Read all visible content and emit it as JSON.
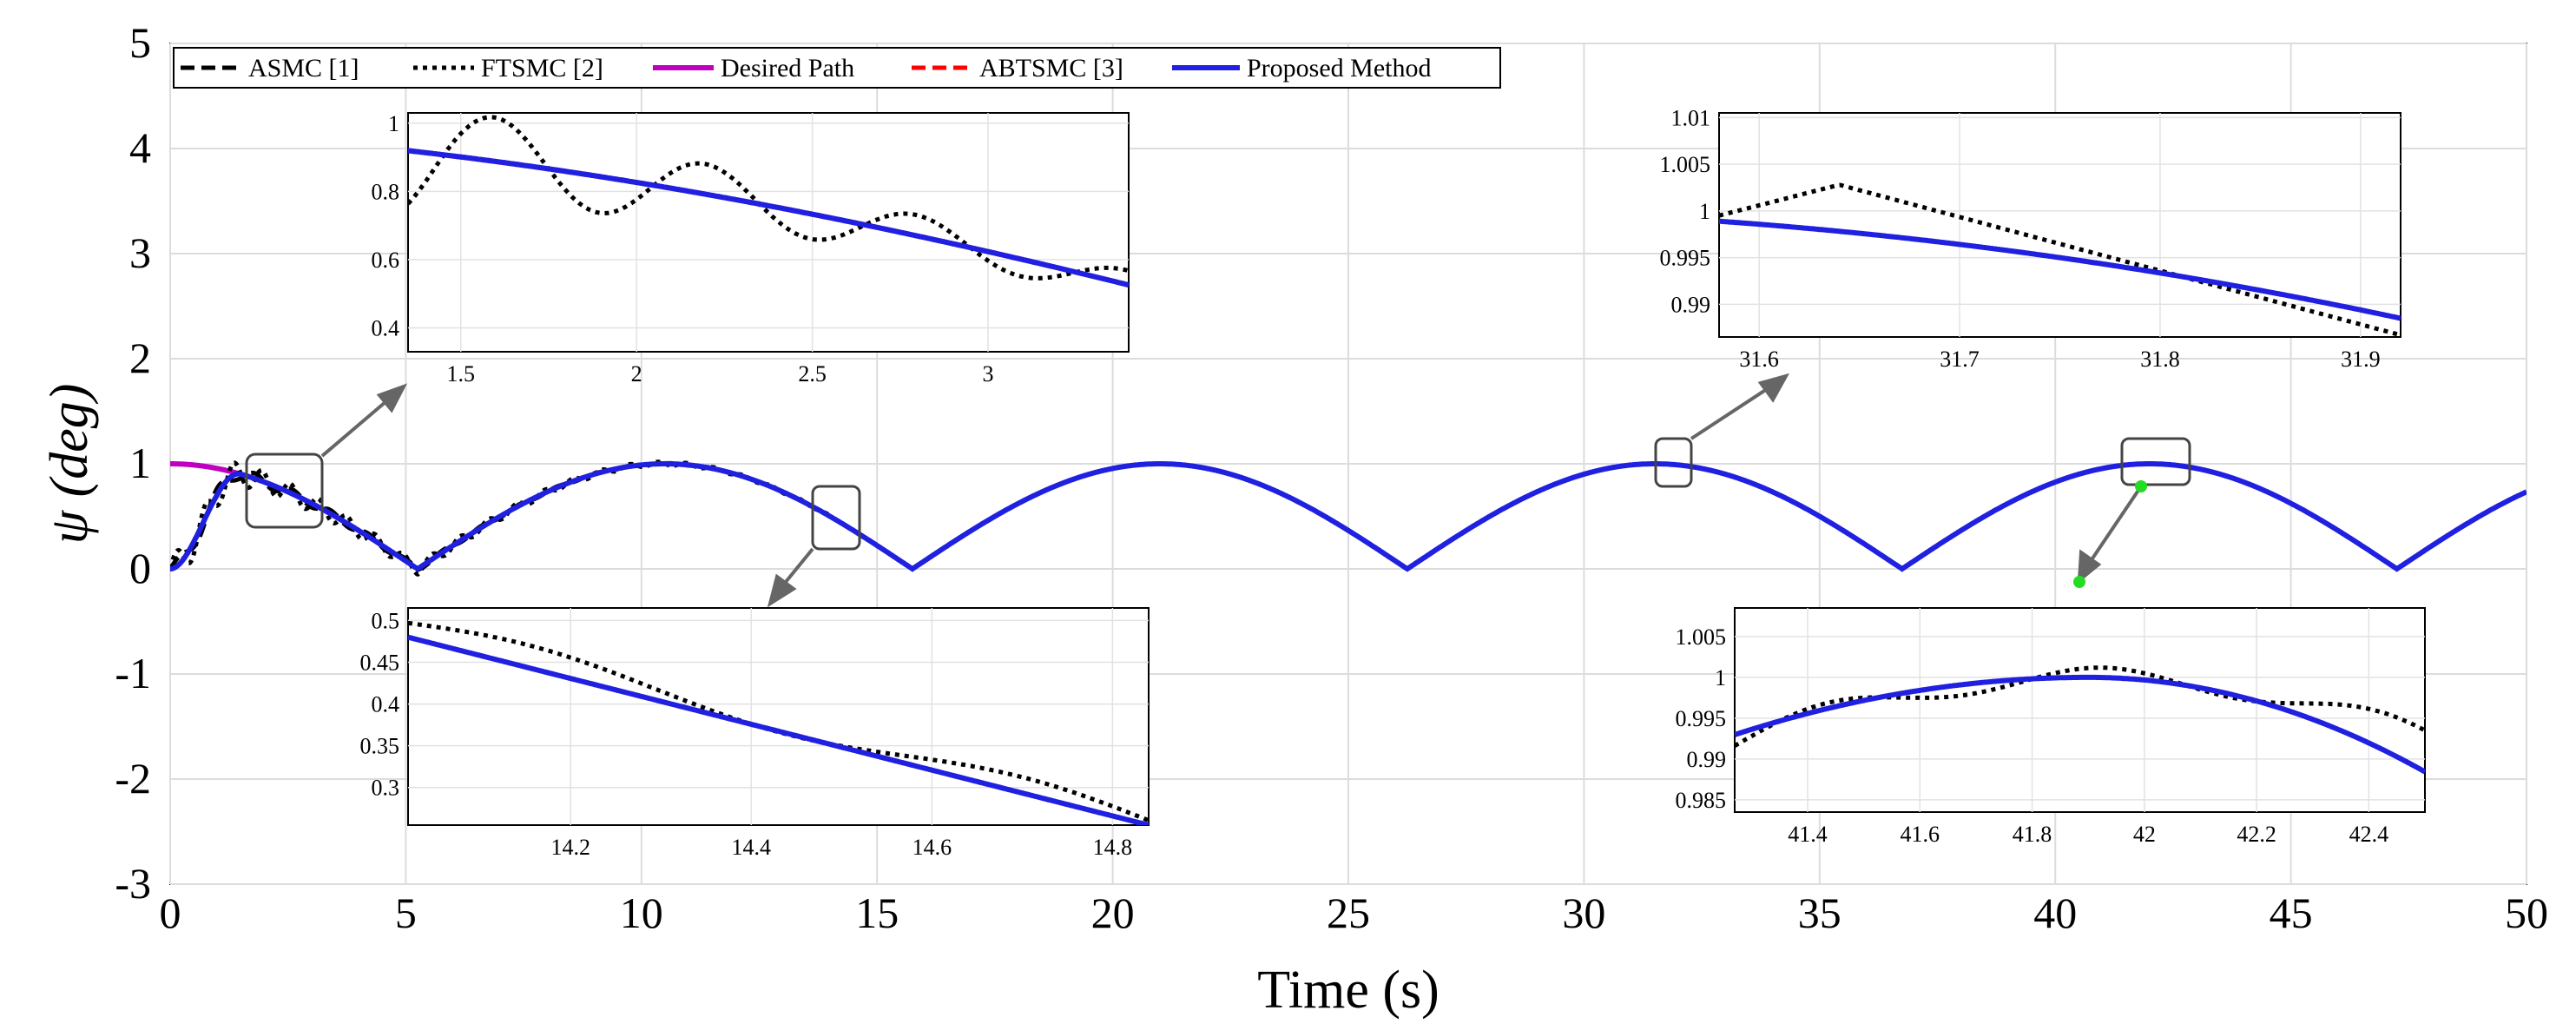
{
  "chart_data": {
    "type": "line",
    "xlabel": "Time (s)",
    "ylabel": "ψ (deg)",
    "xlim": [
      0,
      50
    ],
    "ylim": [
      -3,
      5
    ],
    "xticks": [
      "0",
      "5",
      "10",
      "15",
      "20",
      "25",
      "30",
      "35",
      "40",
      "45",
      "50"
    ],
    "yticks": [
      "-3",
      "-2",
      "-1",
      "0",
      "1",
      "2",
      "3",
      "4",
      "5"
    ],
    "grid": true,
    "legend": {
      "placement": "top-left",
      "entries": [
        {
          "name": "ASMC [1]",
          "color": "#000000",
          "style": "dashed"
        },
        {
          "name": "FTSMC [2]",
          "color": "#000000",
          "style": "dotted"
        },
        {
          "name": "Desired Path",
          "color": "#c000c0",
          "style": "solid"
        },
        {
          "name": "ABTSMC [3]",
          "color": "#ff0000",
          "style": "dashed"
        },
        {
          "name": "Proposed Method",
          "color": "#2020e0",
          "style": "solid"
        }
      ]
    },
    "series": [
      {
        "name": "Desired Path",
        "color": "#c000c0",
        "formula": "|cos(pi*t/10.5)|",
        "x": [
          0,
          5.25,
          10.5,
          15.75,
          21,
          26.25,
          31.5,
          36.75,
          42,
          47.25,
          50
        ],
        "y": [
          1,
          0,
          1,
          0,
          1,
          0,
          1,
          0,
          1,
          0,
          0.78
        ]
      },
      {
        "name": "Proposed Method",
        "color": "#2020e0",
        "x": [
          0,
          0.5,
          1,
          1.5,
          2,
          5.25,
          10.5,
          15.75,
          21,
          26.25,
          31.5,
          36.75,
          42,
          47.25,
          50
        ],
        "y": [
          0,
          0.2,
          0.65,
          0.88,
          0.9,
          0,
          1,
          0,
          1,
          0,
          1,
          0,
          1,
          0,
          0.78
        ]
      },
      {
        "name": "FTSMC [2]",
        "color": "#000000",
        "x": [
          0,
          0.5,
          1,
          1.6,
          1.9,
          2.2,
          2.55,
          2.85,
          3.2,
          5.25,
          10.5,
          15.75
        ],
        "y": [
          0,
          0.45,
          0.8,
          1.02,
          0.73,
          0.9,
          0.62,
          0.76,
          0.5,
          0.02,
          1,
          0
        ]
      }
    ],
    "insets": [
      {
        "xlim": [
          1.35,
          3.4
        ],
        "ylim": [
          0.33,
          1.03
        ],
        "xticks": [
          "1.5",
          "2",
          "2.5",
          "3"
        ],
        "yticks": [
          "0.4",
          "0.6",
          "0.8",
          "1"
        ]
      },
      {
        "xlim": [
          31.58,
          31.92
        ],
        "ylim": [
          0.9865,
          1.0105
        ],
        "xticks": [
          "31.6",
          "31.7",
          "31.8",
          "31.9"
        ],
        "yticks": [
          "0.99",
          "0.995",
          "1",
          "1.005",
          "1.01"
        ]
      },
      {
        "xlim": [
          14.02,
          14.84
        ],
        "ylim": [
          0.255,
          0.515
        ],
        "xticks": [
          "14.2",
          "14.4",
          "14.6",
          "14.8"
        ],
        "yticks": [
          "0.3",
          "0.35",
          "0.4",
          "0.45",
          "0.5"
        ]
      },
      {
        "xlim": [
          41.27,
          42.5
        ],
        "ylim": [
          0.9835,
          1.0085
        ],
        "xticks": [
          "41.4",
          "41.6",
          "41.8",
          "42",
          "42.2",
          "42.4"
        ],
        "yticks": [
          "0.985",
          "0.99",
          "0.995",
          "1",
          "1.005"
        ]
      }
    ]
  }
}
